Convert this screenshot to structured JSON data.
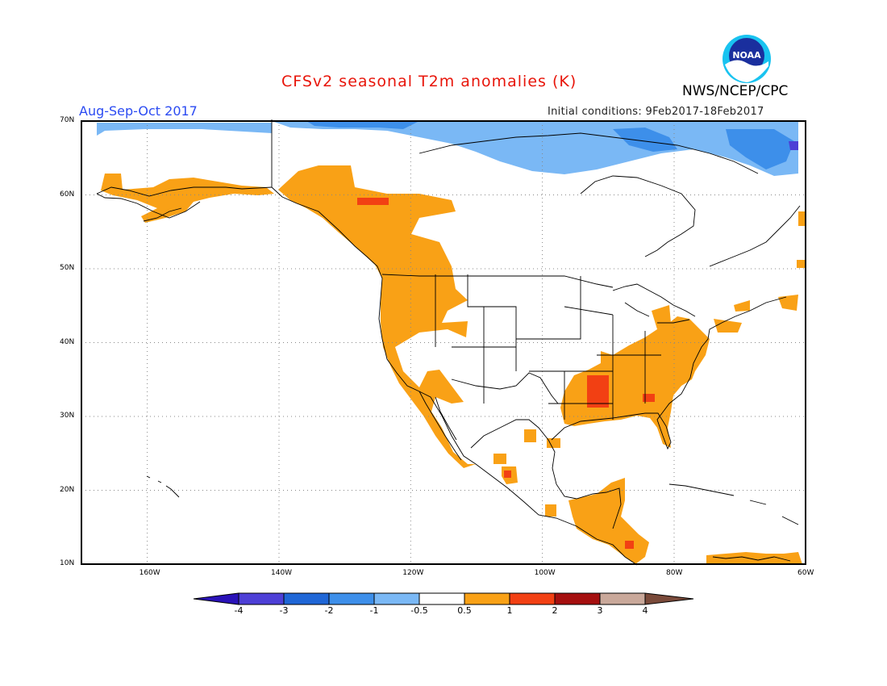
{
  "title": "CFSv2 seasonal T2m anomalies (K)",
  "agency": "NWS/NCEP/CPC",
  "season": "Aug-Sep-Oct 2017",
  "initial_conditions": "Initial conditions: 9Feb2017-18Feb2017",
  "logo": {
    "text": "NOAA",
    "icon": "noaa-logo-icon"
  },
  "axes": {
    "lat_labels": [
      "70N",
      "60N",
      "50N",
      "40N",
      "30N",
      "20N",
      "10N"
    ],
    "lon_labels": [
      "160W",
      "140W",
      "120W",
      "100W",
      "80W",
      "60W"
    ]
  },
  "colorbar": {
    "labels": [
      "-4",
      "-3",
      "-2",
      "-1",
      "-0.5",
      "0.5",
      "1",
      "2",
      "3",
      "4"
    ],
    "colors": [
      "#2a12b8",
      "#4d3fd6",
      "#1f66d6",
      "#3d8fea",
      "#7ab8f5",
      "#ffffff",
      "#f9a116",
      "#f24013",
      "#a50f0f",
      "#c9a89a",
      "#7a4a3a"
    ]
  },
  "colors": {
    "warm_05_1": "#f9a116",
    "warm_1_2": "#f24013",
    "cool_05_1": "#7ab8f5",
    "cool_1_2": "#3d8fea",
    "cool_2_3": "#1f66d6",
    "cool_3_4": "#4d3fd6"
  }
}
